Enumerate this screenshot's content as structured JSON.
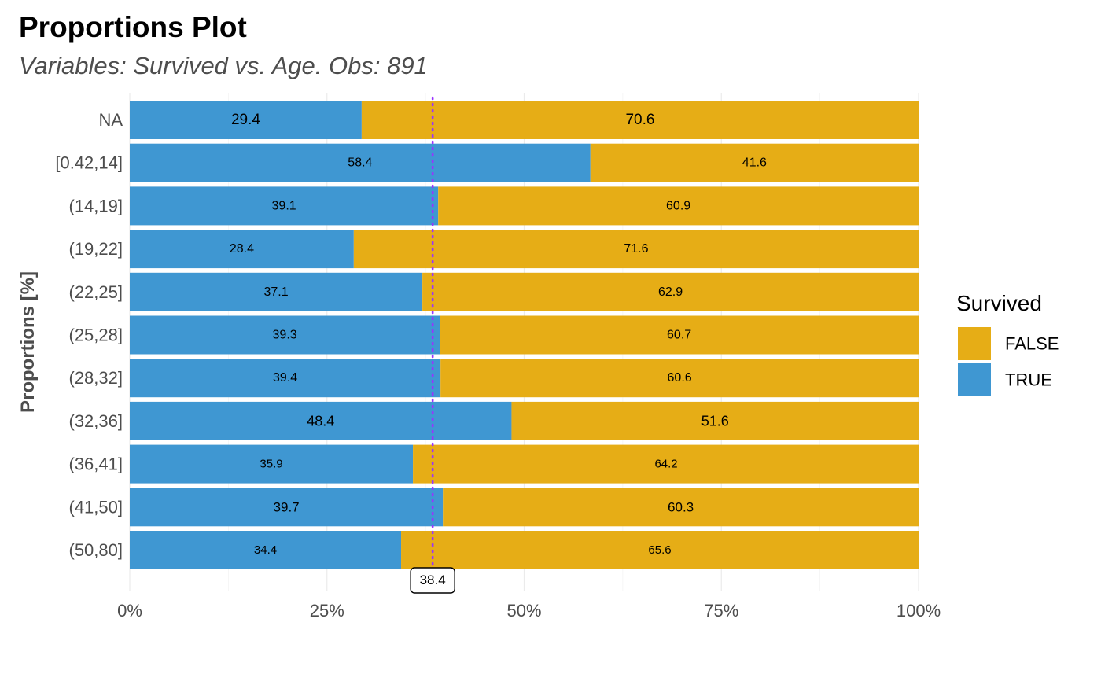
{
  "chart_data": {
    "type": "bar",
    "orientation": "horizontal",
    "stacked": "percent",
    "title": "Proportions Plot",
    "subtitle": "Variables: Survived vs. Age. Obs: 891",
    "xlabel": "",
    "ylabel": "Proportions [%]",
    "xlim": [
      0,
      100
    ],
    "x_ticks": [
      "0%",
      "25%",
      "50%",
      "75%",
      "100%"
    ],
    "grid": true,
    "categories": [
      "NA",
      "[0.42,14]",
      "(14,19]",
      "(19,22]",
      "(22,25]",
      "(25,28]",
      "(28,32]",
      "(32,36]",
      "(36,41]",
      "(41,50]",
      "(50,80]"
    ],
    "label_sizes": [
      19,
      16,
      16,
      16,
      16,
      16,
      16,
      18,
      15,
      17,
      15
    ],
    "series": [
      {
        "name": "TRUE",
        "color": "#3f97d2",
        "values": [
          29.4,
          58.4,
          39.1,
          28.4,
          37.1,
          39.3,
          39.4,
          48.4,
          35.9,
          39.7,
          34.4
        ],
        "labels": [
          "29.4",
          "58.4",
          "39.1",
          "28.4",
          "37.1",
          "39.3",
          "39.4",
          "48.4",
          "35.9",
          "39.7",
          "34.4"
        ]
      },
      {
        "name": "FALSE",
        "color": "#e6ad16",
        "values": [
          70.6,
          41.6,
          60.9,
          71.6,
          62.9,
          60.7,
          60.6,
          51.6,
          64.2,
          60.3,
          65.6
        ],
        "labels": [
          "70.6",
          "41.6",
          "60.9",
          "71.6",
          "62.9",
          "60.7",
          "60.6",
          "51.6",
          "64.2",
          "60.3",
          "65.6"
        ]
      }
    ],
    "reference_line": {
      "value": 38.4,
      "label": "38.4",
      "color": "#9933ff",
      "style": "dotted"
    },
    "legend": {
      "title": "Survived",
      "placement": "right",
      "items": [
        {
          "label": "FALSE",
          "color": "#e6ad16"
        },
        {
          "label": "TRUE",
          "color": "#3f97d2"
        }
      ]
    }
  }
}
